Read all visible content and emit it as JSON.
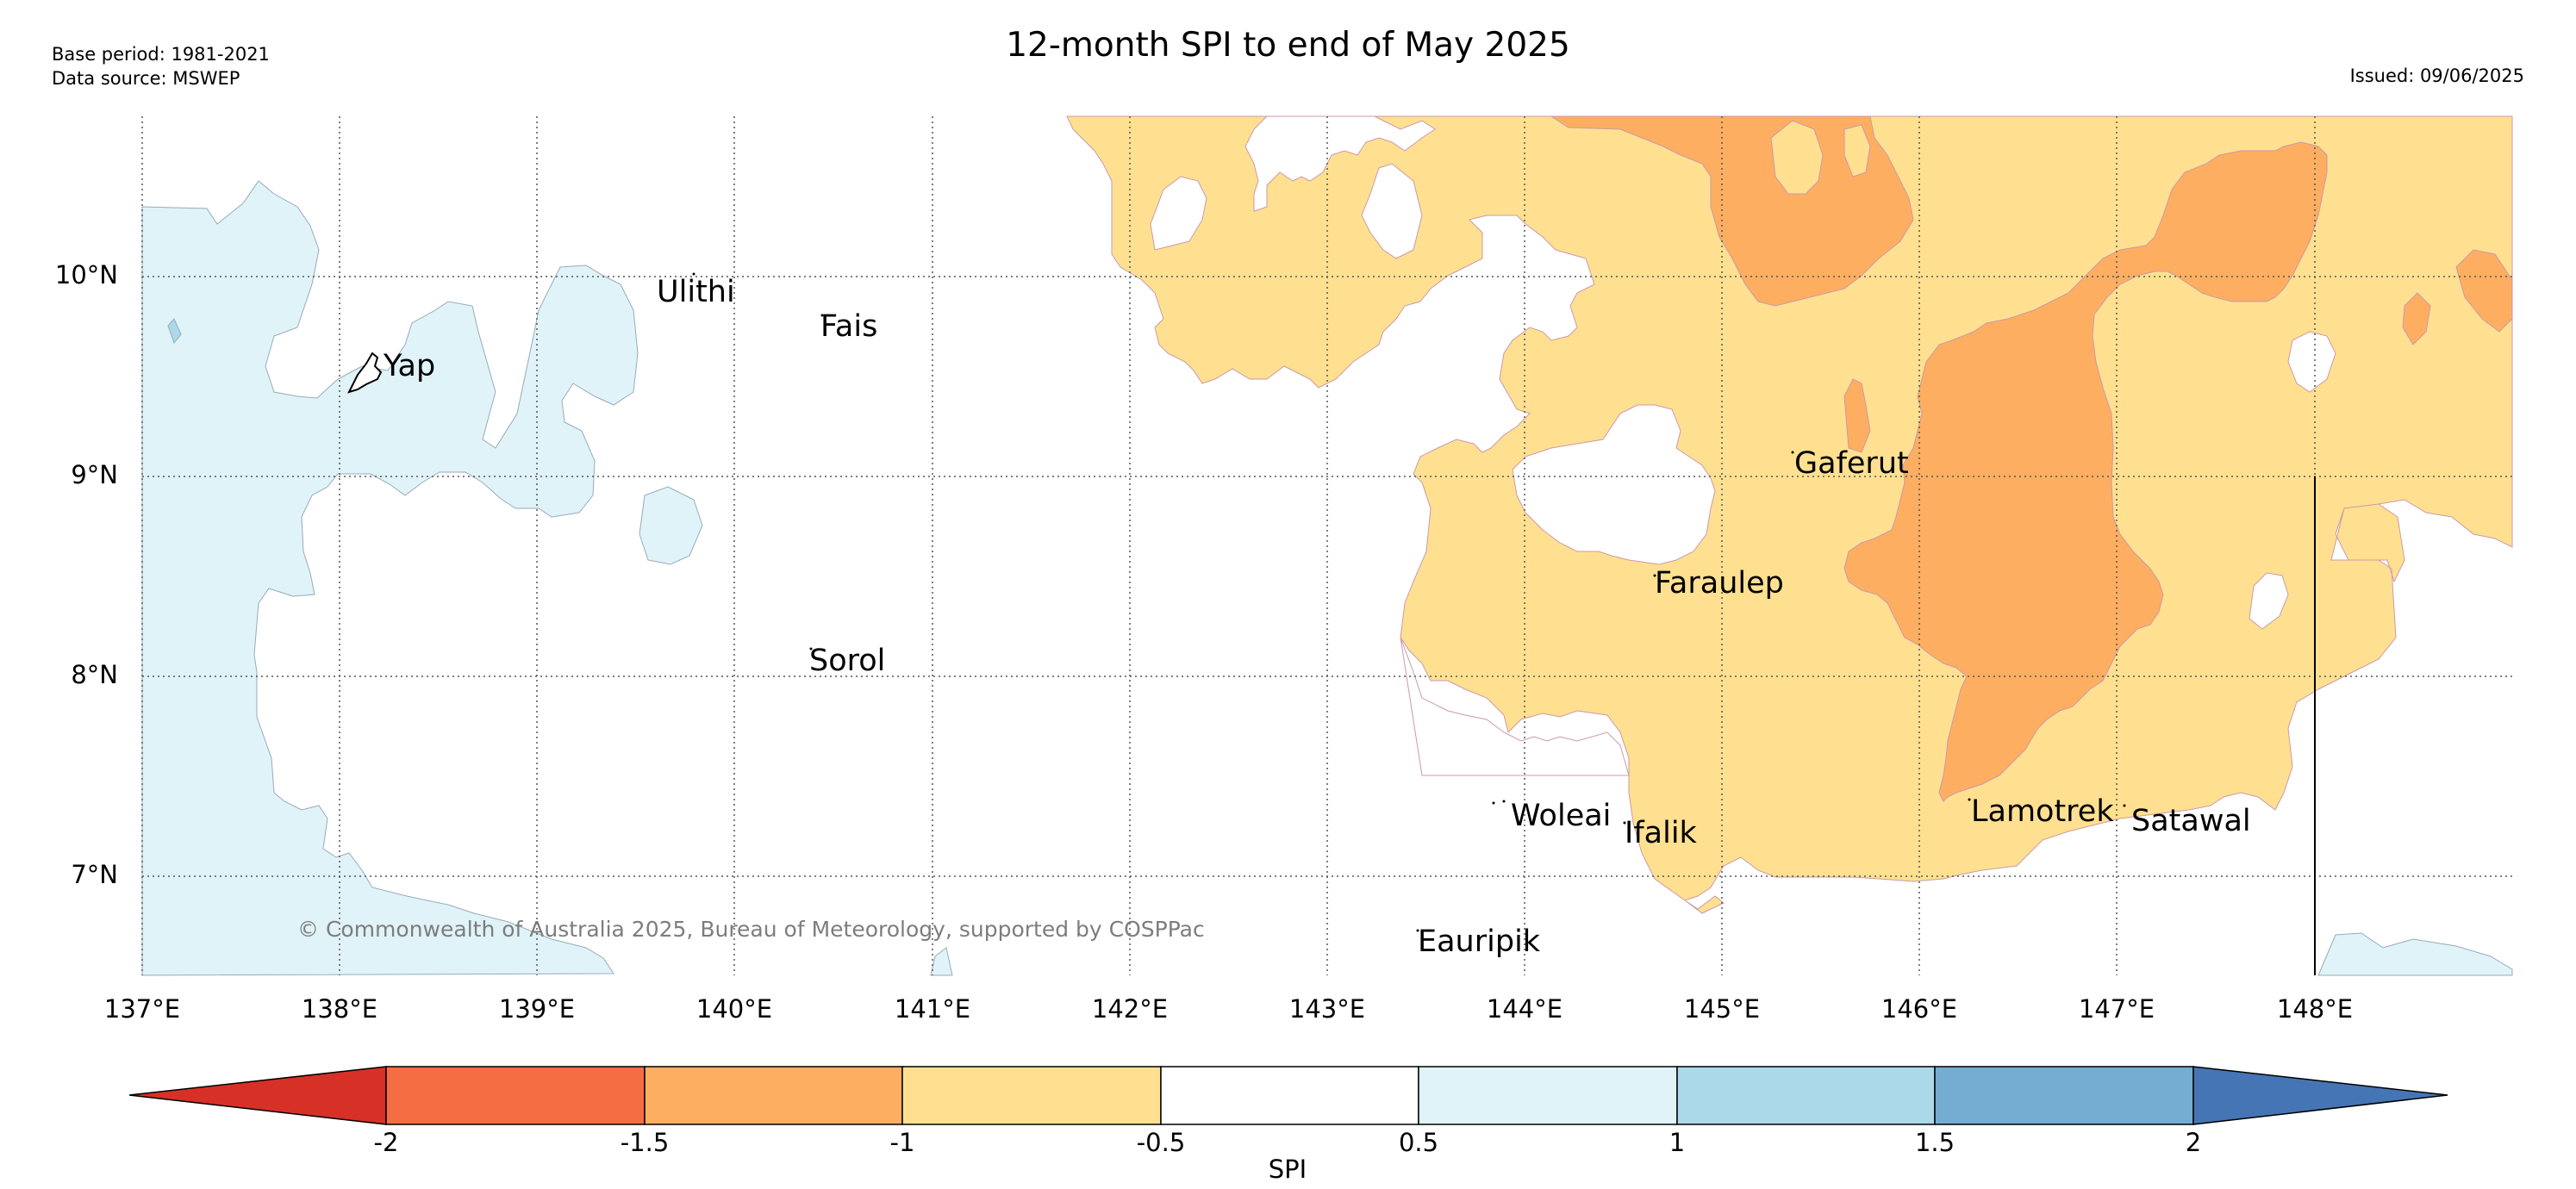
{
  "header": {
    "title": "12-month SPI to end of May 2025",
    "base_period": "Base period: 1981-2021",
    "data_source": "Data source: MSWEP",
    "issued": "Issued: 09/06/2025"
  },
  "map": {
    "lat_labels": [
      "10°N",
      "9°N",
      "8°N",
      "7°N"
    ],
    "lon_labels": [
      "137°E",
      "138°E",
      "139°E",
      "140°E",
      "141°E",
      "142°E",
      "143°E",
      "144°E",
      "145°E",
      "146°E",
      "147°E",
      "148°E"
    ],
    "places": [
      "Ulithi",
      "Fais",
      "Yap",
      "Sorol",
      "Gaferut",
      "Faraulep",
      "Woleai",
      "Ifalik",
      "Lamotrek",
      "Satawal",
      "Eauripik"
    ],
    "copyright": "© Commonwealth of Australia 2025, Bureau of Meteorology, supported by COSPPac"
  },
  "colorbar": {
    "title": "SPI",
    "ticks": [
      "-2",
      "-1.5",
      "-1",
      "-0.5",
      "0.5",
      "1",
      "1.5",
      "2"
    ],
    "colors": {
      "below_-2": "#d73027",
      "-2_to_-1.5": "#f46d43",
      "-1.5_to_-1": "#fdae61",
      "-1_to_-0.5": "#fee090",
      "-0.5_to_0.5": "#ffffff",
      "0.5_to_1": "#e0f3f8",
      "1_to_1.5": "#abd9e9",
      "1.5_to_2": "#74add1",
      "above_2": "#4575b4"
    }
  }
}
